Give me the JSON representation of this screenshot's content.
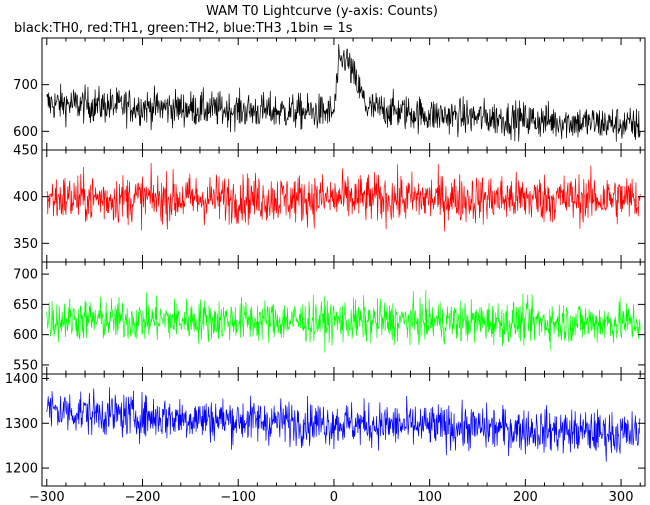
{
  "chart_data": {
    "type": "line",
    "title": "WAM T0 Lightcurve (y-axis: Counts)",
    "subtitle": "black:TH0, red:TH1, green:TH2, blue:TH3 ,1bin = 1s",
    "xlim": [
      -305,
      325
    ],
    "x_ticks": [
      -300,
      -200,
      -100,
      0,
      100,
      200,
      300
    ],
    "x_tick_labels": [
      "−300",
      "−200",
      "−100",
      "0",
      "100",
      "200",
      "300"
    ],
    "grid": false,
    "panels": [
      {
        "series_name": "TH0",
        "color": "#000000",
        "ylim": [
          560,
          800
        ],
        "y_ticks": [
          600,
          700
        ],
        "y_tick_labels": [
          "600",
          "700"
        ],
        "base_values": [
          {
            "x": -300,
            "y": 660
          },
          {
            "x": -100,
            "y": 645
          },
          {
            "x": 0,
            "y": 640
          },
          {
            "x": 5,
            "y": 740
          },
          {
            "x": 12,
            "y": 760
          },
          {
            "x": 20,
            "y": 720
          },
          {
            "x": 35,
            "y": 650
          },
          {
            "x": 100,
            "y": 635
          },
          {
            "x": 200,
            "y": 625
          },
          {
            "x": 300,
            "y": 615
          },
          {
            "x": 320,
            "y": 612
          }
        ],
        "noise_amplitude": 35
      },
      {
        "series_name": "TH1",
        "color": "#ff0000",
        "ylim": [
          330,
          450
        ],
        "y_ticks": [
          350,
          400,
          450
        ],
        "y_tick_labels": [
          "350",
          "400",
          "450"
        ],
        "base_values": [
          {
            "x": -300,
            "y": 398
          },
          {
            "x": 320,
            "y": 398
          }
        ],
        "noise_amplitude": 24
      },
      {
        "series_name": "TH2",
        "color": "#00ff00",
        "ylim": [
          535,
          720
        ],
        "y_ticks": [
          550,
          600,
          650,
          700
        ],
        "y_tick_labels": [
          "550",
          "600",
          "650",
          "700"
        ],
        "base_values": [
          {
            "x": -300,
            "y": 625
          },
          {
            "x": 320,
            "y": 620
          }
        ],
        "noise_amplitude": 32
      },
      {
        "series_name": "TH3",
        "color": "#0000ff",
        "ylim": [
          1160,
          1410
        ],
        "y_ticks": [
          1200,
          1300,
          1400
        ],
        "y_tick_labels": [
          "1200",
          "1300",
          "1400"
        ],
        "base_values": [
          {
            "x": -300,
            "y": 1330
          },
          {
            "x": -200,
            "y": 1315
          },
          {
            "x": 0,
            "y": 1300
          },
          {
            "x": 150,
            "y": 1290
          },
          {
            "x": 320,
            "y": 1275
          }
        ],
        "noise_amplitude": 45
      }
    ]
  }
}
